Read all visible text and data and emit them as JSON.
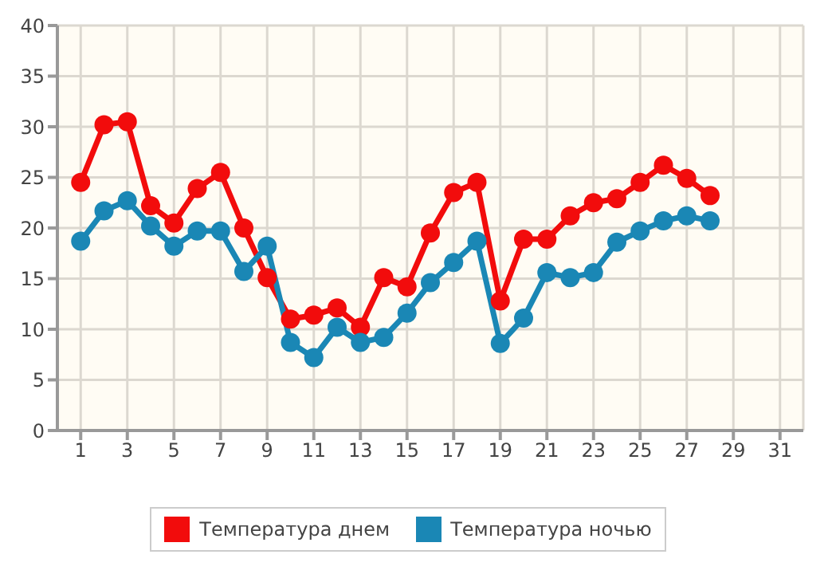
{
  "chart_data": {
    "type": "line",
    "x": [
      1,
      2,
      3,
      4,
      5,
      6,
      7,
      8,
      9,
      10,
      11,
      12,
      13,
      14,
      15,
      16,
      17,
      18,
      19,
      20,
      21,
      22,
      23,
      24,
      25,
      26,
      27,
      28
    ],
    "series": [
      {
        "name": "Температура днем",
        "color": "#f20c0c",
        "values": [
          24.5,
          30.2,
          30.5,
          22.2,
          20.5,
          23.9,
          25.5,
          20,
          15.1,
          11,
          11.4,
          12.1,
          10.2,
          15.1,
          14.2,
          19.5,
          23.5,
          24.5,
          12.8,
          18.9,
          18.9,
          21.2,
          22.5,
          22.9,
          24.5,
          26.2,
          24.9,
          23.2
        ]
      },
      {
        "name": "Температура ночью",
        "color": "#1a87b5",
        "values": [
          18.7,
          21.7,
          22.7,
          20.2,
          18.2,
          19.7,
          19.7,
          15.7,
          18.2,
          8.7,
          7.2,
          10.2,
          8.7,
          9.2,
          11.6,
          14.6,
          16.6,
          18.7,
          8.6,
          11.1,
          15.6,
          15.1,
          15.6,
          18.6,
          19.7,
          20.7,
          21.2,
          20.7
        ]
      }
    ],
    "xlim": [
      0,
      32
    ],
    "xticks": [
      1,
      3,
      5,
      7,
      9,
      11,
      13,
      15,
      17,
      19,
      21,
      23,
      25,
      27,
      29,
      31
    ],
    "ylim": [
      0,
      40
    ],
    "yticks": [
      0,
      5,
      10,
      15,
      20,
      25,
      30,
      35,
      40
    ],
    "grid": true,
    "legend": "bottom",
    "marker": "circle",
    "line_style": "solid"
  }
}
